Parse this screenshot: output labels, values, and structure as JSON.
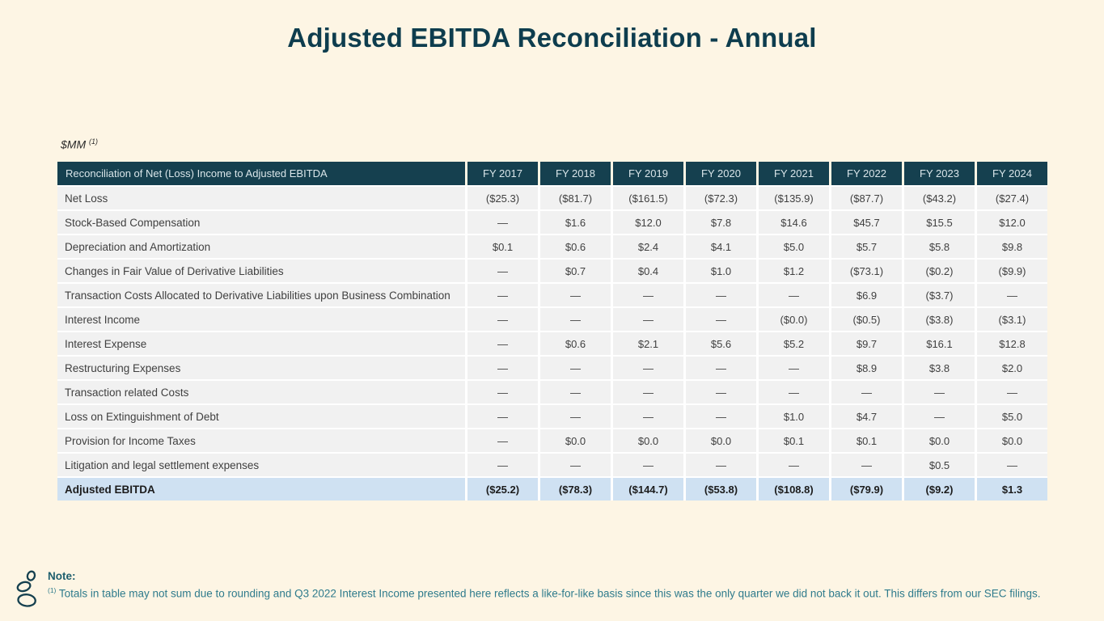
{
  "page": {
    "title": "Adjusted EBITDA Reconciliation - Annual",
    "units_label": "$MM",
    "units_superscript": "(1)"
  },
  "table": {
    "header": {
      "label": "Reconciliation of Net (Loss) Income to Adjusted EBITDA",
      "columns": [
        "FY 2017",
        "FY 2018",
        "FY 2019",
        "FY 2020",
        "FY 2021",
        "FY 2022",
        "FY 2023",
        "FY 2024"
      ]
    },
    "rows": [
      {
        "label": "Net Loss",
        "values": [
          "($25.3)",
          "($81.7)",
          "($161.5)",
          "($72.3)",
          "($135.9)",
          "($87.7)",
          "($43.2)",
          "($27.4)"
        ]
      },
      {
        "label": "Stock-Based Compensation",
        "values": [
          "—",
          "$1.6",
          "$12.0",
          "$7.8",
          "$14.6",
          "$45.7",
          "$15.5",
          "$12.0"
        ]
      },
      {
        "label": "Depreciation and Amortization",
        "values": [
          "$0.1",
          "$0.6",
          "$2.4",
          "$4.1",
          "$5.0",
          "$5.7",
          "$5.8",
          "$9.8"
        ]
      },
      {
        "label": "Changes in Fair Value of Derivative Liabilities",
        "values": [
          "—",
          "$0.7",
          "$0.4",
          "$1.0",
          "$1.2",
          "($73.1)",
          "($0.2)",
          "($9.9)"
        ]
      },
      {
        "label": "Transaction Costs Allocated to Derivative Liabilities upon Business Combination",
        "values": [
          "—",
          "—",
          "—",
          "—",
          "—",
          "$6.9",
          "($3.7)",
          "—"
        ]
      },
      {
        "label": "Interest Income",
        "values": [
          "—",
          "—",
          "—",
          "—",
          "($0.0)",
          "($0.5)",
          "($3.8)",
          "($3.1)"
        ]
      },
      {
        "label": "Interest Expense",
        "values": [
          "—",
          "$0.6",
          "$2.1",
          "$5.6",
          "$5.2",
          "$9.7",
          "$16.1",
          "$12.8"
        ]
      },
      {
        "label": "Restructuring Expenses",
        "values": [
          "—",
          "—",
          "—",
          "—",
          "—",
          "$8.9",
          "$3.8",
          "$2.0"
        ]
      },
      {
        "label": "Transaction related Costs",
        "values": [
          "—",
          "—",
          "—",
          "—",
          "—",
          "—",
          "—",
          "—"
        ]
      },
      {
        "label": "Loss on Extinguishment of Debt",
        "values": [
          "—",
          "—",
          "—",
          "—",
          "$1.0",
          "$4.7",
          "—",
          "$5.0"
        ]
      },
      {
        "label": "Provision for Income Taxes",
        "values": [
          "—",
          "$0.0",
          "$0.0",
          "$0.0",
          "$0.1",
          "$0.1",
          "$0.0",
          "$0.0"
        ]
      },
      {
        "label": "Litigation and legal settlement expenses",
        "values": [
          "—",
          "—",
          "—",
          "—",
          "—",
          "—",
          "$0.5",
          "—"
        ]
      }
    ],
    "total_row": {
      "label": "Adjusted EBITDA",
      "values": [
        "($25.2)",
        "($78.3)",
        "($144.7)",
        "($53.8)",
        "($108.8)",
        "($79.9)",
        "($9.2)",
        "$1.3"
      ]
    }
  },
  "footer": {
    "note_label": "Note:",
    "note_superscript": "(1)",
    "note_text": "Totals in table may not sum due to rounding and Q3 2022 Interest Income presented here reflects a like-for-like basis since this was the only quarter we did not back it out. This differs from our SEC filings.",
    "logo": "stacked-stones-logo"
  },
  "colors": {
    "background": "#FDF5E4",
    "title_color": "#0E3D4E",
    "header_bg": "#15404F",
    "header_text": "#D9E5E9",
    "row_bg": "#F1F1F1",
    "total_bg": "#CFE1F2",
    "note_body": "#2F7B8C"
  }
}
